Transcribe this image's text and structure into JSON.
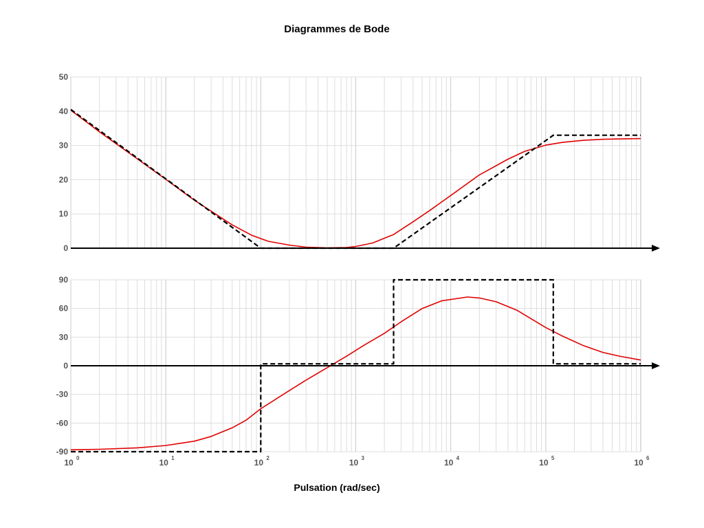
{
  "title": "Diagrammes de Bode",
  "xlabel": "Pulsation (rad/sec)",
  "colors": {
    "response": "#e00000",
    "asymptote": "#000000",
    "axis": "#000000",
    "grid": "#dddddd",
    "frame": "#bbbbbb"
  },
  "chart_data": [
    {
      "type": "line",
      "name": "magnitude",
      "title": "",
      "xlabel": "",
      "ylabel": "",
      "xscale": "log",
      "xlim": [
        1,
        1000000
      ],
      "ylim": [
        0,
        50
      ],
      "yticks": [
        0,
        10,
        20,
        30,
        40,
        50
      ],
      "grid": true,
      "series": [
        {
          "style": "solid",
          "color": "#e00000",
          "x": [
            1,
            2,
            5,
            10,
            20,
            50,
            80,
            120,
            200,
            300,
            500,
            800,
            1000,
            1500,
            2500,
            4000,
            6000,
            10000,
            20000,
            40000,
            60000,
            100000,
            150000,
            250000,
            400000,
            600000,
            1000000
          ],
          "y": [
            40.3,
            34.0,
            26.1,
            20.1,
            14.0,
            6.8,
            3.8,
            2.0,
            0.9,
            0.3,
            0.1,
            0.2,
            0.5,
            1.5,
            4.0,
            7.7,
            11.0,
            15.4,
            21.4,
            26.0,
            28.3,
            30.1,
            30.9,
            31.5,
            31.8,
            31.9,
            32.0
          ]
        },
        {
          "style": "dashed",
          "color": "#000000",
          "x": [
            1,
            100,
            2500,
            120000,
            1000000
          ],
          "y": [
            40.5,
            0,
            0,
            33,
            33
          ]
        }
      ]
    },
    {
      "type": "line",
      "name": "phase",
      "title": "",
      "xlabel": "Pulsation (rad/sec)",
      "ylabel": "",
      "xscale": "log",
      "xlim": [
        1,
        1000000
      ],
      "ylim": [
        -90,
        90
      ],
      "yticks": [
        -90,
        -60,
        -30,
        0,
        30,
        60,
        90
      ],
      "grid": true,
      "series": [
        {
          "style": "solid",
          "color": "#e00000",
          "x": [
            1,
            2,
            5,
            10,
            20,
            30,
            50,
            70,
            100,
            200,
            300,
            500,
            800,
            1200,
            2000,
            3000,
            5000,
            8000,
            15000,
            20000,
            30000,
            50000,
            100000,
            150000,
            250000,
            400000,
            600000,
            1000000
          ],
          "y": [
            -88,
            -87.5,
            -86,
            -83.5,
            -79,
            -74,
            -65,
            -57,
            -45,
            -26,
            -15,
            -2,
            10,
            21,
            34,
            46,
            60,
            68,
            72,
            71,
            67,
            58,
            40,
            31,
            21,
            14,
            10,
            6
          ]
        },
        {
          "style": "dashed",
          "color": "#000000",
          "x": [
            1,
            100,
            100,
            2500,
            2500,
            120000,
            120000,
            1000000
          ],
          "y": [
            -90,
            -90,
            2,
            2,
            90,
            90,
            2,
            2
          ]
        }
      ]
    }
  ]
}
